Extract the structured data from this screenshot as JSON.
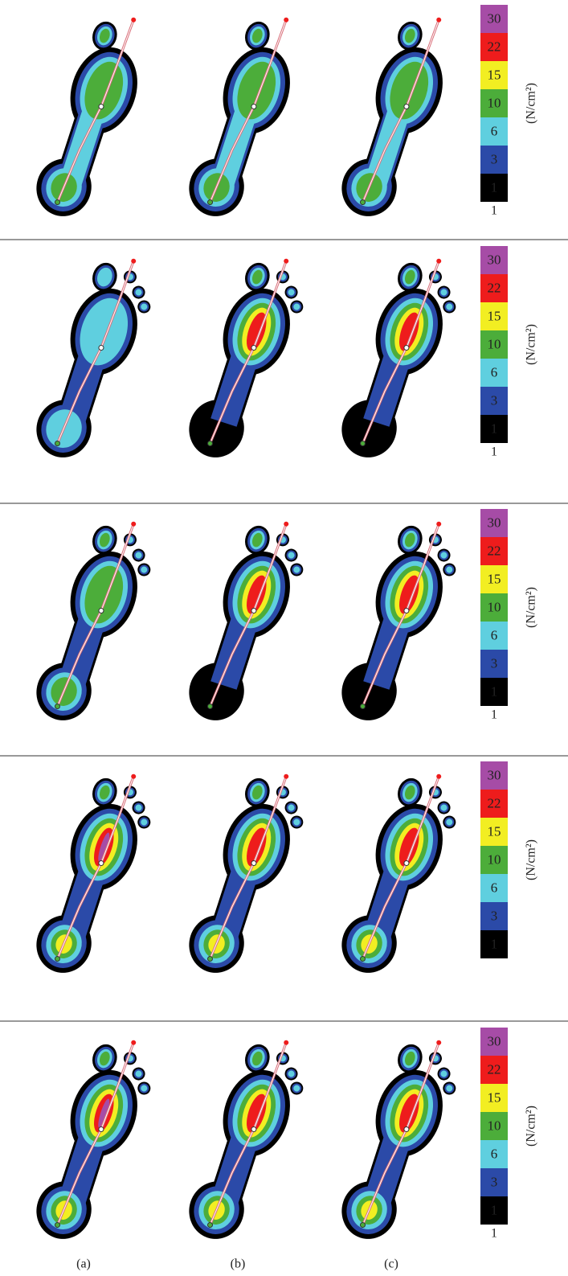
{
  "panels": [
    {
      "legend": {
        "levels": [
          "30",
          "22",
          "15",
          "10",
          "6",
          "3",
          "1"
        ],
        "unit": "(N/cm²)",
        "footnote": "1"
      }
    },
    {
      "legend": {
        "levels": [
          "30",
          "22",
          "15",
          "10",
          "6",
          "3",
          "1"
        ],
        "unit": "(N/cm²)",
        "footnote": "1"
      }
    },
    {
      "legend": {
        "levels": [
          "30",
          "22",
          "15",
          "10",
          "6",
          "3",
          "1"
        ],
        "unit": "(N/cm²)",
        "footnote": "1"
      }
    },
    {
      "legend": {
        "levels": [
          "30",
          "22",
          "15",
          "10",
          "6",
          "3",
          "1"
        ],
        "unit": "(N/cm²)"
      }
    },
    {
      "legend": {
        "levels": [
          "30",
          "22",
          "15",
          "10",
          "6",
          "3",
          "1"
        ],
        "unit": "(N/cm²)",
        "footnote": "1"
      }
    }
  ],
  "column_labels": [
    "(a)",
    "(b)",
    "(c)"
  ]
}
